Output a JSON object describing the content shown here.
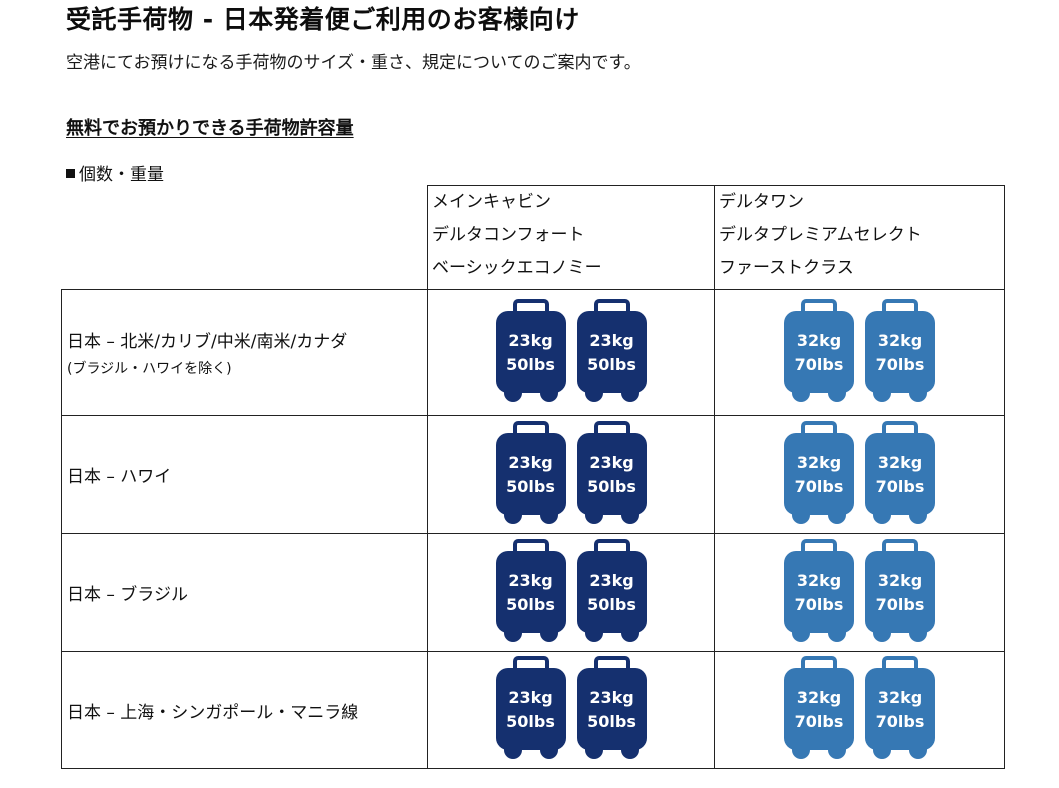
{
  "page": {
    "title": "受託手荷物 - 日本発着便ご利用のお客様向け",
    "intro": "空港にてお預けになる手荷物のサイズ・重さ、規定についてのご案内です。",
    "section_heading": "無料でお預かりできる手荷物許容量",
    "sub_heading": "個数・重量"
  },
  "colors": {
    "economy_bag": "#15306f",
    "premium_bag": "#3678b4"
  },
  "icons": {
    "bullet": "black-square",
    "bag": "suitcase-icon"
  },
  "table": {
    "columns": [
      {
        "lines": [
          "メインキャビン",
          "デルタコンフォート",
          "ベーシックエコノミー"
        ],
        "bags": [
          {
            "weight": "23kg",
            "pounds": "50lbs"
          },
          {
            "weight": "23kg",
            "pounds": "50lbs"
          }
        ]
      },
      {
        "lines": [
          "デルタワン",
          "デルタプレミアムセレクト",
          "ファーストクラス"
        ],
        "bags": [
          {
            "weight": "32kg",
            "pounds": "70lbs"
          },
          {
            "weight": "32kg",
            "pounds": "70lbs"
          }
        ]
      }
    ],
    "rows": [
      {
        "route": "日本 – 北米/カリブ/中米/南米/カナダ",
        "note": "(ブラジル・ハワイを除く)"
      },
      {
        "route": "日本 – ハワイ",
        "note": ""
      },
      {
        "route": "日本 – ブラジル",
        "note": ""
      },
      {
        "route": "日本 – 上海・シンガポール・マニラ線",
        "note": ""
      }
    ]
  }
}
